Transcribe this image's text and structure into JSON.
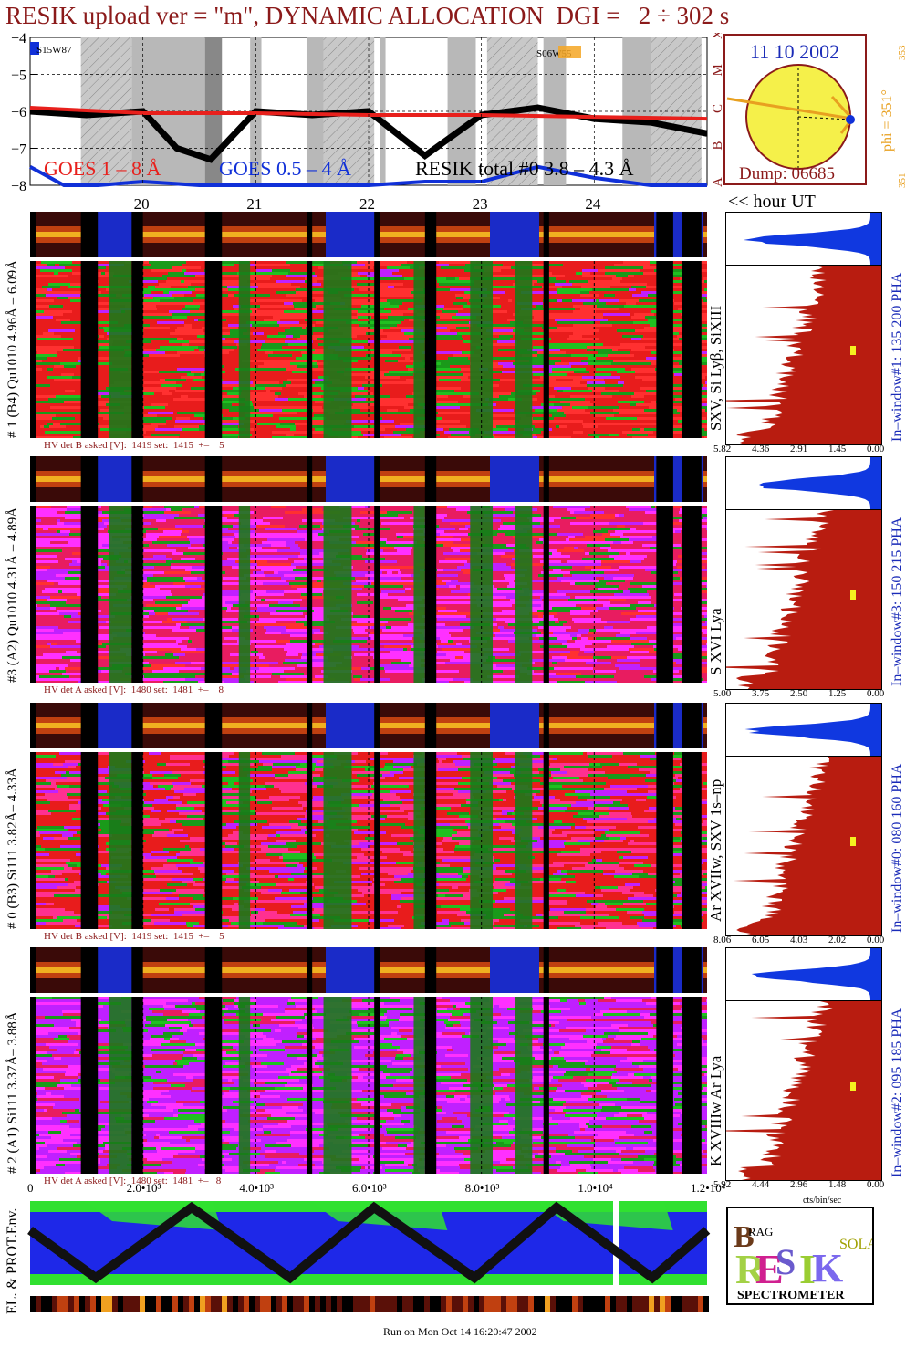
{
  "title": "RESIK upload ver = \"m\", DYNAMIC ALLOCATION  DGI =   2 ÷ 302 s",
  "goes": {
    "yticks": [
      "−4",
      "−5",
      "−6",
      "−7",
      "−8"
    ],
    "class_letters": [
      "X",
      "M",
      "C",
      "B",
      "A"
    ],
    "legend_goes18": "GOES 1 – 8 Å",
    "legend_goes054": "GOES 0.5 – 4 Å",
    "legend_resik": "RESIK total #0  3.8 – 4.3 Å",
    "ar_left": "S15W87",
    "ar_right": "S06W55",
    "hour_ticks": [
      "20",
      "21",
      "22",
      "23",
      "24"
    ],
    "hour_label": "<< hour UT"
  },
  "orbit": {
    "date": "11 10 2002",
    "phi": "phi = 351°",
    "phi_top": "353",
    "phi_bottom": "351",
    "dump": "Dump: 06685"
  },
  "panels": [
    {
      "label": "# 1 (B4) Qu1010 4.96Å – 6.09Å",
      "lines": "SXV, Si Lyβ, SiXIII",
      "hv": "HV det B asked [V]:  1419 set:  1415  +–    5",
      "window": "In–window#1:  135 200 PHA",
      "xticks": [
        "5.82",
        "4.36",
        "2.91",
        "1.45",
        "0.00"
      ]
    },
    {
      "label": "#3 (A2) Qu1010  4.31Å – 4.89Å",
      "lines": "S XVI Lya",
      "hv": "HV det A asked [V]:  1480 set:  1481  +–    8",
      "window": "In–window#3:  150 215 PHA",
      "xticks": [
        "5.00",
        "3.75",
        "2.50",
        "1.25",
        "0.00"
      ]
    },
    {
      "label": "# 0 (B3) Si111  3.82Å– 4.33Å",
      "lines": "Ar XVIIw,  SXV 1s–np",
      "hv": "HV det B asked [V]:  1419 set:  1415  +–    5",
      "window": "In–window#0:  080 160 PHA",
      "xticks": [
        "8.06",
        "6.05",
        "4.03",
        "2.02",
        "0.00"
      ]
    },
    {
      "label": "# 2 (A1) Si111  3.37Å– 3.88Å",
      "lines": "K XVIIIw  Ar Lya",
      "hv": "HV det A asked [V]:  1480 set:  1481  +–   8",
      "window": "In–window#2:  095 185 PHA",
      "xticks": [
        "5.92",
        "4.44",
        "2.96",
        "1.48",
        "0.00"
      ]
    }
  ],
  "bottom": {
    "xticks": [
      "0",
      "2.0•10³",
      "4.0•10³",
      "6.0•10³",
      "8.0•10³",
      "1.0•10⁴",
      "1.2•10⁴"
    ],
    "ylabel": "EL. & PROT.Env.",
    "cts_label": "cts/bin/sec",
    "run": "Run on Mon Oct 14 16:20:47 2002"
  },
  "logo": {
    "top_letters": [
      "B",
      "RAG",
      "G"
    ],
    "word": "RESIK",
    "side": "SOLAR",
    "caption": "SPECTROMETER"
  },
  "colors": {
    "title": "#8b1a1a",
    "goes_red": "#e8201c",
    "goes_blue": "#1030d8",
    "spec_fill": "#b81c10",
    "pha_blue": "#1038e0",
    "window_text": "#1a2bb8",
    "orbit_sun": "#f5f04a"
  },
  "chart_data": [
    {
      "type": "line",
      "title": "",
      "ylabel": "",
      "ylim": [
        -8,
        -4
      ],
      "x_hours": [
        19.0,
        25.0
      ],
      "series": [
        {
          "name": "GOES 1 – 8 Å",
          "values_note": "flat near -6.0 log flux",
          "x": [
            19.0,
            20.0,
            21.0,
            22.0,
            23.0,
            24.0,
            25.0
          ],
          "y": [
            -5.9,
            -6.05,
            -6.05,
            -6.1,
            -6.1,
            -6.15,
            -6.2
          ]
        },
        {
          "name": "GOES 0.5 – 4 Å",
          "x": [
            19.0,
            19.3,
            19.6,
            20.0,
            20.5,
            21.0,
            21.5,
            22.0,
            22.5,
            23.0,
            23.5,
            24.0,
            24.5,
            25.0
          ],
          "y": [
            -7.5,
            -8.0,
            -8.0,
            -7.9,
            -8.0,
            -8.0,
            -8.0,
            -8.0,
            -7.9,
            -7.9,
            -7.5,
            -7.8,
            -8.0,
            -8.0
          ]
        },
        {
          "name": "RESIK total #0  3.8 – 4.3 Å",
          "x": [
            19.0,
            19.5,
            20.0,
            20.3,
            20.6,
            21.0,
            21.5,
            22.0,
            22.5,
            23.0,
            23.5,
            24.0,
            24.5,
            25.0
          ],
          "y": [
            -6.0,
            -6.1,
            -6.0,
            -7.0,
            -7.3,
            -6.0,
            -6.1,
            -6.0,
            -7.2,
            -6.1,
            -5.9,
            -6.2,
            -6.3,
            -6.6
          ]
        }
      ]
    }
  ]
}
